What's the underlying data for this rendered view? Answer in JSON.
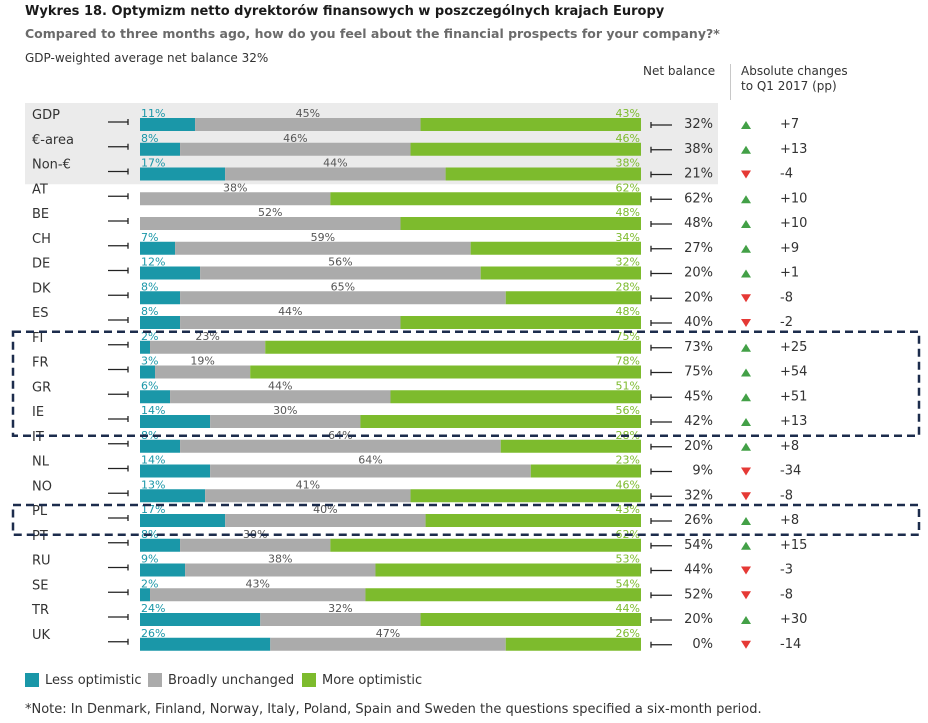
{
  "title": "Wykres 18. Optymizm netto dyrektorów finansowych w poszczególnych krajach Europy",
  "subtitle": "Compared to three months ago, how do you feel about the financial prospects for your company?*",
  "note_top": "GDP-weighted average net balance 32%",
  "col_net_header": "Net balance",
  "col_abs_header_line1": "Absolute changes",
  "col_abs_header_line2": "to Q1 2017 (pp)",
  "footnote": "*Note: In Denmark, Finland, Norway, Italy, Poland, Spain and Sweden the questions specified a six-month period.",
  "colors": {
    "less": "#1a97a8",
    "unchanged": "#ababab",
    "more": "#7dbb2d",
    "up": "#43a047",
    "down": "#e53935",
    "band": "#ebebeb",
    "highlight_box": "#1c2c4c"
  },
  "legend": [
    {
      "key": "less",
      "label": "Less optimistic"
    },
    {
      "key": "unchanged",
      "label": "Broadly unchanged"
    },
    {
      "key": "more",
      "label": "More optimistic"
    }
  ],
  "chart_data": {
    "type": "bar",
    "subtype": "stacked-horizontal-100",
    "series": [
      {
        "name": "Less optimistic",
        "values": [
          11,
          8,
          17,
          0,
          0,
          7,
          12,
          8,
          8,
          2,
          3,
          6,
          14,
          8,
          14,
          13,
          17,
          8,
          9,
          2,
          24,
          26
        ]
      },
      {
        "name": "Broadly unchanged",
        "values": [
          45,
          46,
          44,
          38,
          52,
          59,
          56,
          65,
          44,
          23,
          19,
          44,
          30,
          64,
          64,
          41,
          40,
          30,
          38,
          43,
          32,
          47
        ]
      },
      {
        "name": "More optimistic",
        "values": [
          43,
          46,
          38,
          62,
          48,
          34,
          32,
          28,
          48,
          75,
          78,
          51,
          56,
          28,
          23,
          46,
          43,
          62,
          53,
          54,
          44,
          26
        ]
      }
    ],
    "rows": [
      {
        "label": "GDP",
        "less": "11%",
        "unchanged": "45%",
        "more": "43%",
        "net": "32%",
        "change": "+7",
        "dir": "up",
        "band": true,
        "box": false
      },
      {
        "label": "€-area",
        "less": "8%",
        "unchanged": "46%",
        "more": "46%",
        "net": "38%",
        "change": "+13",
        "dir": "up",
        "band": true,
        "box": false
      },
      {
        "label": "Non-€",
        "less": "17%",
        "unchanged": "44%",
        "more": "38%",
        "net": "21%",
        "change": "-4",
        "dir": "down",
        "band": true,
        "box": false
      },
      {
        "label": "AT",
        "less": "",
        "unchanged": "38%",
        "more": "62%",
        "net": "62%",
        "change": "+10",
        "dir": "up",
        "band": false,
        "box": false
      },
      {
        "label": "BE",
        "less": "",
        "unchanged": "52%",
        "more": "48%",
        "net": "48%",
        "change": "+10",
        "dir": "up",
        "band": false,
        "box": false
      },
      {
        "label": "CH",
        "less": "7%",
        "unchanged": "59%",
        "more": "34%",
        "net": "27%",
        "change": "+9",
        "dir": "up",
        "band": false,
        "box": false
      },
      {
        "label": "DE",
        "less": "12%",
        "unchanged": "56%",
        "more": "32%",
        "net": "20%",
        "change": "+1",
        "dir": "up",
        "band": false,
        "box": false
      },
      {
        "label": "DK",
        "less": "8%",
        "unchanged": "65%",
        "more": "28%",
        "net": "20%",
        "change": "-8",
        "dir": "down",
        "band": false,
        "box": false
      },
      {
        "label": "ES",
        "less": "8%",
        "unchanged": "44%",
        "more": "48%",
        "net": "40%",
        "change": "-2",
        "dir": "down",
        "band": false,
        "box": false
      },
      {
        "label": "FI",
        "less": "2%",
        "unchanged": "23%",
        "more": "75%",
        "net": "73%",
        "change": "+25",
        "dir": "up",
        "band": false,
        "box": true
      },
      {
        "label": "FR",
        "less": "3%",
        "unchanged": "19%",
        "more": "78%",
        "net": "75%",
        "change": "+54",
        "dir": "up",
        "band": false,
        "box": true
      },
      {
        "label": "GR",
        "less": "6%",
        "unchanged": "44%",
        "more": "51%",
        "net": "45%",
        "change": "+51",
        "dir": "up",
        "band": false,
        "box": true
      },
      {
        "label": "IE",
        "less": "14%",
        "unchanged": "30%",
        "more": "56%",
        "net": "42%",
        "change": "+13",
        "dir": "up",
        "band": false,
        "box": true
      },
      {
        "label": "IT",
        "less": "8%",
        "unchanged": "64%",
        "more": "28%",
        "net": "20%",
        "change": "+8",
        "dir": "up",
        "band": false,
        "box": false
      },
      {
        "label": "NL",
        "less": "14%",
        "unchanged": "64%",
        "more": "23%",
        "net": "9%",
        "change": "-34",
        "dir": "down",
        "band": false,
        "box": false
      },
      {
        "label": "NO",
        "less": "13%",
        "unchanged": "41%",
        "more": "46%",
        "net": "32%",
        "change": "-8",
        "dir": "down",
        "band": false,
        "box": false
      },
      {
        "label": "PL",
        "less": "17%",
        "unchanged": "40%",
        "more": "43%",
        "net": "26%",
        "change": "+8",
        "dir": "up",
        "band": false,
        "box": true
      },
      {
        "label": "PT",
        "less": "8%",
        "unchanged": "30%",
        "more": "62%",
        "net": "54%",
        "change": "+15",
        "dir": "up",
        "band": false,
        "box": false
      },
      {
        "label": "RU",
        "less": "9%",
        "unchanged": "38%",
        "more": "53%",
        "net": "44%",
        "change": "-3",
        "dir": "down",
        "band": false,
        "box": false
      },
      {
        "label": "SE",
        "less": "2%",
        "unchanged": "43%",
        "more": "54%",
        "net": "52%",
        "change": "-8",
        "dir": "down",
        "band": false,
        "box": false
      },
      {
        "label": "TR",
        "less": "24%",
        "unchanged": "32%",
        "more": "44%",
        "net": "20%",
        "change": "+30",
        "dir": "up",
        "band": false,
        "box": false
      },
      {
        "label": "UK",
        "less": "26%",
        "unchanged": "47%",
        "more": "26%",
        "net": "0%",
        "change": "-14",
        "dir": "down",
        "band": false,
        "box": false
      }
    ],
    "box_groups": [
      [
        "FI",
        "FR",
        "GR",
        "IE"
      ],
      [
        "PL"
      ]
    ],
    "xlim": [
      0,
      100
    ]
  }
}
